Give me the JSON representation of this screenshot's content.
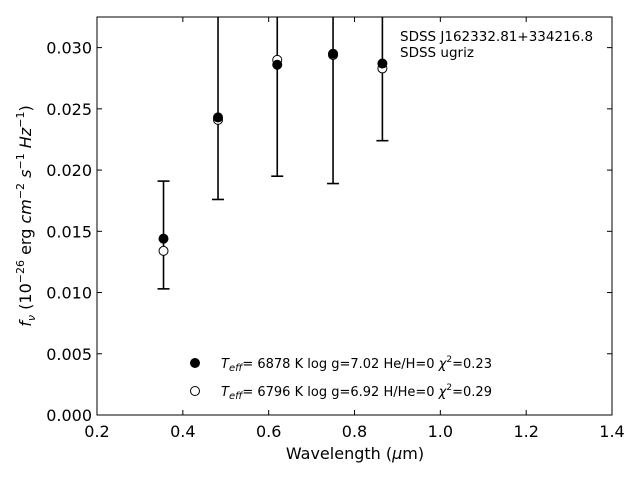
{
  "chart_data": {
    "type": "scatter",
    "xlabel": "Wavelength (μm)",
    "ylabel": "f_ν (10^-26 erg cm^-2 s^-1 Hz^-1)",
    "xlim": [
      0.2,
      1.4
    ],
    "ylim": [
      0.0,
      0.0325
    ],
    "x_ticks": [
      0.2,
      0.4,
      0.6,
      0.8,
      1.0,
      1.2,
      1.4
    ],
    "x_tick_labels": [
      "0.2",
      "0.4",
      "0.6",
      "0.8",
      "1.0",
      "1.2",
      "1.4"
    ],
    "y_ticks": [
      0.0,
      0.005,
      0.01,
      0.015,
      0.02,
      0.025,
      0.03
    ],
    "y_tick_labels": [
      "0.000",
      "0.005",
      "0.010",
      "0.015",
      "0.020",
      "0.025",
      "0.030"
    ],
    "grid": false,
    "annotation": [
      "SDSS J162332.81+334216.8",
      "SDSS ugriz"
    ],
    "series": [
      {
        "style": "filled",
        "x": [
          0.355,
          0.482,
          0.62,
          0.75,
          0.865
        ],
        "y": [
          0.0144,
          0.0243,
          0.0286,
          0.0295,
          0.0287
        ],
        "err_low": [
          0.0103,
          0.0176,
          0.0195,
          0.0189,
          0.0224
        ],
        "err_high": [
          0.0191,
          0.0325,
          0.0325,
          0.0325,
          0.0325
        ]
      },
      {
        "style": "open",
        "x": [
          0.355,
          0.482,
          0.62,
          0.75,
          0.865
        ],
        "y": [
          0.0134,
          0.0241,
          0.029,
          0.0294,
          0.0283
        ]
      }
    ],
    "legend": {
      "position": "bottom-center",
      "entries": [
        {
          "teff": "6878 K",
          "logg": "log g=7.02",
          "comp": "He/H=0",
          "chi2": "0.23"
        },
        {
          "teff": "6796 K",
          "logg": "log g=6.92",
          "comp": "H/He=0",
          "chi2": "0.29"
        }
      ]
    }
  }
}
